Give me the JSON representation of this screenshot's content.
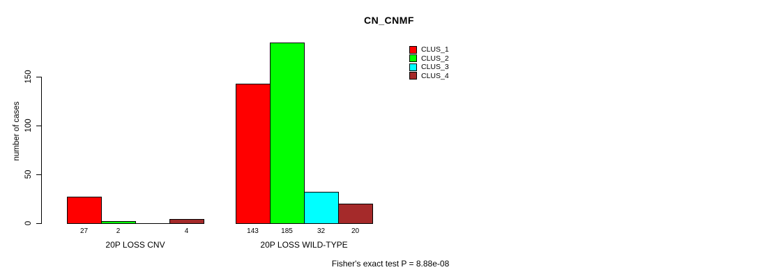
{
  "title": "CN_CNMF",
  "y_axis": {
    "label": "number of cases",
    "tick_labels": [
      "0",
      "50",
      "100",
      "150"
    ]
  },
  "footer": {
    "text": "Fisher's exact test P = 8.88e-08"
  },
  "chart_data": {
    "type": "bar",
    "title": "CN_CNMF",
    "xlabel": "",
    "ylabel": "number of cases",
    "ylim": [
      0,
      190
    ],
    "yticks": [
      0,
      50,
      100,
      150
    ],
    "ytick_labels": [
      "0",
      "50",
      "100",
      "150"
    ],
    "categories": [
      "20P LOSS CNV",
      "20P LOSS WILD-TYPE"
    ],
    "series": [
      {
        "name": "CLUS_1",
        "color": "#FF0000",
        "values": [
          27,
          143
        ]
      },
      {
        "name": "CLUS_2",
        "color": "#00FF00",
        "values": [
          2,
          185
        ]
      },
      {
        "name": "CLUS_3",
        "color": "#00FFFF",
        "values": [
          0,
          32
        ]
      },
      {
        "name": "CLUS_4",
        "color": "#A52A2A",
        "values": [
          4,
          20
        ]
      }
    ],
    "bar_value_labels": [
      [
        "27",
        "2",
        "",
        "4"
      ],
      [
        "143",
        "185",
        "32",
        "20"
      ]
    ],
    "legend_position": "top-right",
    "grid": false,
    "annotation": "Fisher's exact test P = 8.88e-08"
  }
}
